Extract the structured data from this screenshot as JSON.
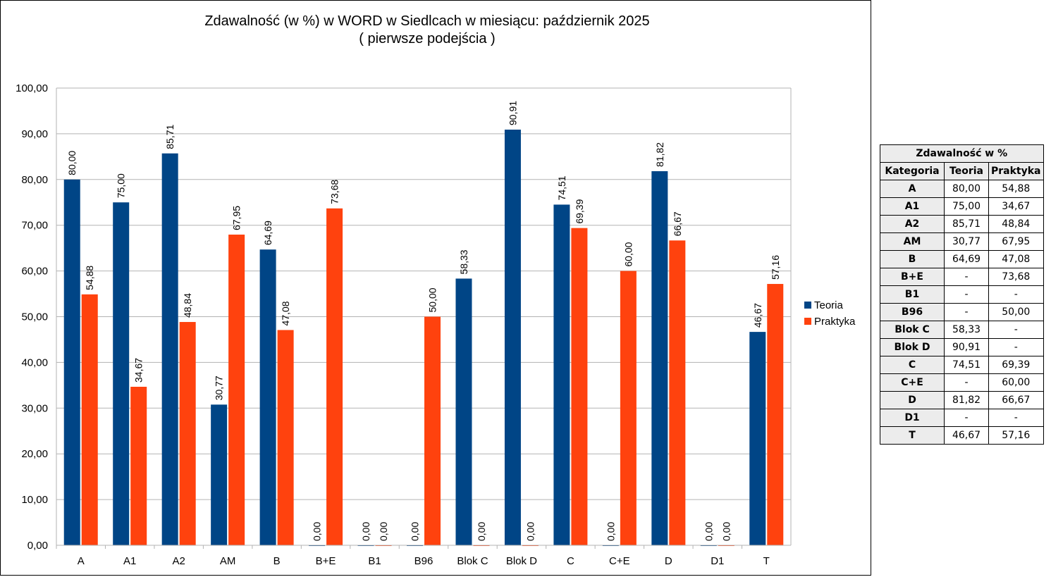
{
  "chart_data": {
    "type": "bar",
    "title": "Zdawalność (w %) w WORD w Siedlcach w miesiącu: październik 2025",
    "subtitle": "( pierwsze podejścia )",
    "xlabel": "",
    "ylabel": "",
    "ylim": [
      0,
      100
    ],
    "yticks": [
      "0,00",
      "10,00",
      "20,00",
      "30,00",
      "40,00",
      "50,00",
      "60,00",
      "70,00",
      "80,00",
      "90,00",
      "100,00"
    ],
    "grid": true,
    "legend_position": "right",
    "categories": [
      "A",
      "A1",
      "A2",
      "AM",
      "B",
      "B+E",
      "B1",
      "B96",
      "Blok C",
      "Blok D",
      "C",
      "C+E",
      "D",
      "D1",
      "T"
    ],
    "series": [
      {
        "name": "Teoria",
        "color": "#004586",
        "values": [
          80.0,
          75.0,
          85.71,
          30.77,
          64.69,
          0.0,
          0.0,
          0.0,
          58.33,
          90.91,
          74.51,
          0.0,
          81.82,
          0.0,
          46.67
        ],
        "labels": [
          "80,00",
          "75,00",
          "85,71",
          "30,77",
          "64,69",
          "0,00",
          "0,00",
          "0,00",
          "58,33",
          "90,91",
          "74,51",
          "0,00",
          "81,82",
          "0,00",
          "46,67"
        ]
      },
      {
        "name": "Praktyka",
        "color": "#ff420e",
        "values": [
          54.88,
          34.67,
          48.84,
          67.95,
          47.08,
          73.68,
          0.0,
          50.0,
          0.0,
          0.0,
          69.39,
          60.0,
          66.67,
          0.0,
          57.16
        ],
        "labels": [
          "54,88",
          "34,67",
          "48,84",
          "67,95",
          "47,08",
          "73,68",
          "0,00",
          "50,00",
          "0,00",
          "0,00",
          "69,39",
          "60,00",
          "66,67",
          "0,00",
          "57,16"
        ]
      }
    ]
  },
  "table": {
    "title": "Zdawalność w %",
    "headers": [
      "Kategoria",
      "Teoria",
      "Praktyka"
    ],
    "rows": [
      [
        "A",
        "80,00",
        "54,88"
      ],
      [
        "A1",
        "75,00",
        "34,67"
      ],
      [
        "A2",
        "85,71",
        "48,84"
      ],
      [
        "AM",
        "30,77",
        "67,95"
      ],
      [
        "B",
        "64,69",
        "47,08"
      ],
      [
        "B+E",
        "-",
        "73,68"
      ],
      [
        "B1",
        "-",
        "-"
      ],
      [
        "B96",
        "-",
        "50,00"
      ],
      [
        "Blok C",
        "58,33",
        "-"
      ],
      [
        "Blok D",
        "90,91",
        "-"
      ],
      [
        "C",
        "74,51",
        "69,39"
      ],
      [
        "C+E",
        "-",
        "60,00"
      ],
      [
        "D",
        "81,82",
        "66,67"
      ],
      [
        "D1",
        "-",
        "-"
      ],
      [
        "T",
        "46,67",
        "57,16"
      ]
    ]
  }
}
